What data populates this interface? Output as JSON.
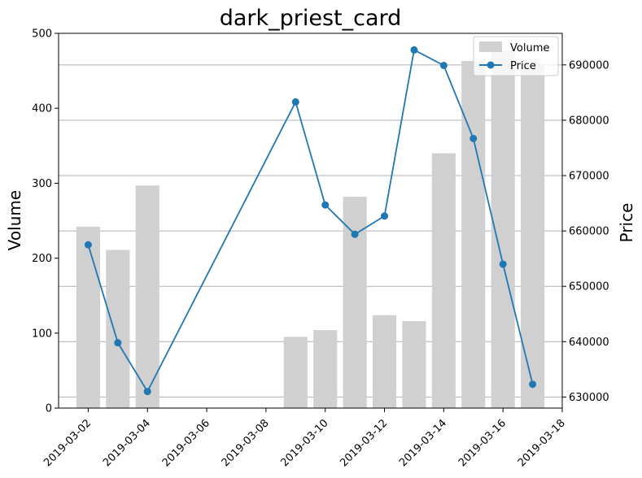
{
  "chart_data": {
    "type": "bar+line",
    "title": "dark_priest_card",
    "ylabel_left": "Volume",
    "ylabel_right": "Price",
    "xlabel": "",
    "x_ticks": [
      "2019-03-02",
      "2019-03-04",
      "2019-03-06",
      "2019-03-08",
      "2019-03-10",
      "2019-03-12",
      "2019-03-14",
      "2019-03-16",
      "2019-03-18"
    ],
    "x_range": [
      "2019-03-01",
      "2019-03-18"
    ],
    "y_left_ticks": [
      "0",
      "100",
      "200",
      "300",
      "400",
      "500"
    ],
    "y_left_range": [
      0,
      500
    ],
    "y_right_ticks": [
      "630000",
      "640000",
      "650000",
      "660000",
      "670000",
      "680000",
      "690000"
    ],
    "y_right_range": [
      628000,
      695700
    ],
    "grid": "horizontal, right axis",
    "legend_position": "top-right",
    "series": [
      {
        "name": "Volume",
        "kind": "bar",
        "color": "#d0d0d0",
        "points": [
          {
            "date": "2019-03-02",
            "value": 242
          },
          {
            "date": "2019-03-03",
            "value": 211
          },
          {
            "date": "2019-03-04",
            "value": 297
          },
          {
            "date": "2019-03-09",
            "value": 95
          },
          {
            "date": "2019-03-10",
            "value": 104
          },
          {
            "date": "2019-03-11",
            "value": 282
          },
          {
            "date": "2019-03-12",
            "value": 124
          },
          {
            "date": "2019-03-13",
            "value": 116
          },
          {
            "date": "2019-03-14",
            "value": 340
          },
          {
            "date": "2019-03-15",
            "value": 463
          },
          {
            "date": "2019-03-16",
            "value": 477
          },
          {
            "date": "2019-03-17",
            "value": 460
          }
        ]
      },
      {
        "name": "Price",
        "kind": "line",
        "color": "#1f77b4",
        "points": [
          {
            "date": "2019-03-02",
            "value": 657500
          },
          {
            "date": "2019-03-03",
            "value": 639800
          },
          {
            "date": "2019-03-04",
            "value": 631000
          },
          {
            "date": "2019-03-09",
            "value": 683300
          },
          {
            "date": "2019-03-10",
            "value": 664700
          },
          {
            "date": "2019-03-11",
            "value": 659400
          },
          {
            "date": "2019-03-12",
            "value": 662700
          },
          {
            "date": "2019-03-13",
            "value": 692700
          },
          {
            "date": "2019-03-14",
            "value": 689900
          },
          {
            "date": "2019-03-15",
            "value": 676700
          },
          {
            "date": "2019-03-16",
            "value": 654000
          },
          {
            "date": "2019-03-17",
            "value": 632300
          }
        ]
      }
    ]
  }
}
